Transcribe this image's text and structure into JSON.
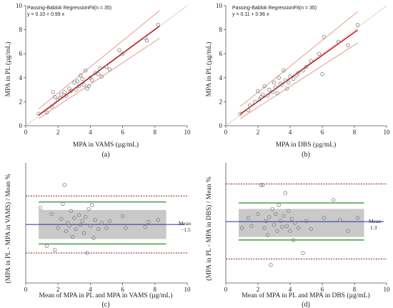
{
  "chart_data": [
    {
      "id": "a",
      "type": "scatter",
      "panel_label": "(a)",
      "header_line1": "Passing-Bablok RegressionFit(n = 35)",
      "header_line2": "y = 0.10  +  0.99  x",
      "xlabel": "MPA in VAMS (µg/mL)",
      "ylabel": "MPA in PL (µg/mL)",
      "xlim": [
        0,
        10
      ],
      "ylim": [
        0,
        10
      ],
      "xticks": [
        0,
        2,
        4,
        6,
        8,
        10
      ],
      "yticks": [
        0,
        2,
        4,
        6,
        8,
        10
      ],
      "tick_labels": [
        "0",
        "2",
        "4",
        "6",
        "8",
        "10"
      ],
      "regression": {
        "intercept": 0.1,
        "slope": 0.99,
        "x_range": [
          0.8,
          8.3
        ]
      },
      "ci_upper": {
        "start": [
          0.8,
          1.4
        ],
        "end": [
          8.3,
          9.6
        ]
      },
      "ci_lower": {
        "start": [
          0.8,
          0.6
        ],
        "end": [
          8.3,
          7.3
        ]
      },
      "points": [
        [
          0.8,
          1.0
        ],
        [
          1.3,
          1.1
        ],
        [
          1.6,
          1.6
        ],
        [
          1.7,
          2.8
        ],
        [
          1.8,
          2.4
        ],
        [
          2.0,
          2.2
        ],
        [
          2.2,
          2.6
        ],
        [
          2.4,
          2.8
        ],
        [
          2.5,
          2.5
        ],
        [
          2.7,
          3.1
        ],
        [
          2.8,
          2.9
        ],
        [
          3.0,
          3.6
        ],
        [
          3.1,
          3.0
        ],
        [
          3.3,
          3.3
        ],
        [
          3.4,
          4.2
        ],
        [
          3.5,
          3.9
        ],
        [
          3.6,
          3.4
        ],
        [
          3.7,
          4.6
        ],
        [
          3.8,
          3.1
        ],
        [
          3.9,
          3.3
        ],
        [
          4.0,
          4.0
        ],
        [
          4.1,
          3.8
        ],
        [
          4.3,
          4.4
        ],
        [
          4.5,
          4.3
        ],
        [
          4.7,
          4.1
        ],
        [
          5.0,
          4.9
        ],
        [
          5.2,
          4.7
        ],
        [
          5.8,
          6.3
        ],
        [
          6.0,
          6.0
        ],
        [
          7.4,
          7.3
        ],
        [
          7.5,
          7.1
        ],
        [
          8.2,
          8.4
        ],
        [
          3.2,
          3.7
        ],
        [
          2.1,
          2.3
        ],
        [
          4.6,
          4.8
        ]
      ]
    },
    {
      "id": "b",
      "type": "scatter",
      "panel_label": "(b)",
      "header_line1": "Passing-Bablok RegressionFit(n = 35)",
      "header_line2": "y = 0.11  +  0.96  x",
      "xlabel": "MPA in DBS (µg/mL)",
      "ylabel": "MPA in PL (µg/mL)",
      "xlim": [
        0,
        10
      ],
      "ylim": [
        0,
        10
      ],
      "xticks": [
        0,
        2,
        4,
        6,
        8,
        10
      ],
      "yticks": [
        0,
        2,
        4,
        6,
        8,
        10
      ],
      "tick_labels": [
        "0",
        "2",
        "4",
        "6",
        "8",
        "10"
      ],
      "regression": {
        "intercept": 0.11,
        "slope": 0.96,
        "x_range": [
          0.9,
          8.2
        ]
      },
      "ci_upper": {
        "start": [
          0.9,
          1.6
        ],
        "end": [
          8.2,
          9.5
        ]
      },
      "ci_lower": {
        "start": [
          0.9,
          0.6
        ],
        "end": [
          8.2,
          6.9
        ]
      },
      "points": [
        [
          0.9,
          1.0
        ],
        [
          1.4,
          1.3
        ],
        [
          1.5,
          1.7
        ],
        [
          1.8,
          2.0
        ],
        [
          2.0,
          2.9
        ],
        [
          2.1,
          2.2
        ],
        [
          2.3,
          2.6
        ],
        [
          2.4,
          3.3
        ],
        [
          2.6,
          2.5
        ],
        [
          2.7,
          3.0
        ],
        [
          2.9,
          2.8
        ],
        [
          3.0,
          3.6
        ],
        [
          3.1,
          3.2
        ],
        [
          3.2,
          2.7
        ],
        [
          3.3,
          4.0
        ],
        [
          3.5,
          3.4
        ],
        [
          3.6,
          4.6
        ],
        [
          3.7,
          3.8
        ],
        [
          3.8,
          3.1
        ],
        [
          3.9,
          3.6
        ],
        [
          4.0,
          4.1
        ],
        [
          4.2,
          3.9
        ],
        [
          4.5,
          4.4
        ],
        [
          4.8,
          4.6
        ],
        [
          5.0,
          4.9
        ],
        [
          5.3,
          5.4
        ],
        [
          5.8,
          6.0
        ],
        [
          6.0,
          4.3
        ],
        [
          6.1,
          7.4
        ],
        [
          7.0,
          7.0
        ],
        [
          7.6,
          6.7
        ],
        [
          8.2,
          8.4
        ],
        [
          2.2,
          2.4
        ],
        [
          3.4,
          3.5
        ],
        [
          4.4,
          4.2
        ]
      ]
    },
    {
      "id": "c",
      "type": "scatter",
      "panel_label": "(c)",
      "xlabel": "Mean of MPA in PL and MPA in VAMS (µg/mL)",
      "ylabel": "(MPA in PL - MPA in VAMS) / Mean %",
      "xlim": [
        0,
        10
      ],
      "ylim": [
        -60,
        60
      ],
      "xticks": [
        0,
        2,
        4,
        6,
        8,
        10
      ],
      "tick_labels": [
        "0",
        "2",
        "4",
        "6",
        "8",
        "10"
      ],
      "mean_label": "Mean",
      "mean_value_label": "−1.5",
      "mean": -1.5,
      "loa": [
        -21,
        21
      ],
      "ci_outer": [
        -30,
        27
      ],
      "band": {
        "x": [
          0.8,
          8.7
        ],
        "y": [
          -16,
          13
        ]
      },
      "points": [
        [
          0.9,
          15
        ],
        [
          1.3,
          -23
        ],
        [
          1.6,
          9
        ],
        [
          1.8,
          -27
        ],
        [
          2.0,
          -5
        ],
        [
          2.2,
          4
        ],
        [
          2.4,
          38
        ],
        [
          2.5,
          -8
        ],
        [
          2.6,
          0
        ],
        [
          2.7,
          -3
        ],
        [
          2.8,
          12
        ],
        [
          2.9,
          -14
        ],
        [
          3.0,
          5
        ],
        [
          3.1,
          -6
        ],
        [
          3.3,
          8
        ],
        [
          3.4,
          -2
        ],
        [
          3.5,
          2
        ],
        [
          3.6,
          -10
        ],
        [
          3.7,
          6
        ],
        [
          3.8,
          -30
        ],
        [
          3.9,
          14
        ],
        [
          4.0,
          -3
        ],
        [
          4.1,
          18
        ],
        [
          4.2,
          -15
        ],
        [
          4.3,
          3
        ],
        [
          4.5,
          -6
        ],
        [
          4.7,
          0
        ],
        [
          5.0,
          -5
        ],
        [
          5.2,
          2
        ],
        [
          6.0,
          7
        ],
        [
          6.2,
          -5
        ],
        [
          7.4,
          -4
        ],
        [
          7.6,
          1
        ],
        [
          8.2,
          3
        ],
        [
          2.3,
          19
        ]
      ]
    },
    {
      "id": "d",
      "type": "scatter",
      "panel_label": "(d)",
      "xlabel": "Mean of MPA in PL and MPA in DBS (µg/mL)",
      "ylabel": "(MPA in PL - MPA in DBS) / Mean %",
      "xlim": [
        0,
        10
      ],
      "ylim": [
        -60,
        60
      ],
      "xticks": [
        0,
        2,
        4,
        6,
        8,
        10
      ],
      "tick_labels": [
        "0",
        "2",
        "4",
        "6",
        "8",
        "10"
      ],
      "mean_label": "Mean",
      "mean_value_label": "1.3",
      "mean": 1.3,
      "loa": [
        -17,
        20
      ],
      "ci_outer": [
        -36,
        39
      ],
      "band": {
        "x": [
          0.8,
          8.6
        ],
        "y": [
          -14,
          14
        ]
      },
      "points": [
        [
          1.0,
          -5
        ],
        [
          1.4,
          5
        ],
        [
          1.6,
          -3
        ],
        [
          2.0,
          9
        ],
        [
          2.2,
          38
        ],
        [
          2.4,
          -5
        ],
        [
          2.5,
          2
        ],
        [
          2.6,
          -12
        ],
        [
          2.7,
          6
        ],
        [
          2.8,
          -42
        ],
        [
          2.9,
          14
        ],
        [
          3.0,
          -2
        ],
        [
          3.1,
          9
        ],
        [
          3.2,
          -8
        ],
        [
          3.4,
          2
        ],
        [
          3.5,
          -4
        ],
        [
          3.6,
          7
        ],
        [
          3.7,
          30
        ],
        [
          3.8,
          -3
        ],
        [
          3.9,
          12
        ],
        [
          4.0,
          -8
        ],
        [
          4.1,
          4
        ],
        [
          4.3,
          0
        ],
        [
          4.5,
          -5
        ],
        [
          4.8,
          -30
        ],
        [
          5.0,
          2
        ],
        [
          5.3,
          -6
        ],
        [
          6.1,
          5
        ],
        [
          6.7,
          23
        ],
        [
          7.1,
          3
        ],
        [
          7.6,
          -8
        ],
        [
          8.2,
          5
        ],
        [
          2.3,
          38
        ],
        [
          3.3,
          18
        ],
        [
          4.2,
          -17
        ]
      ]
    }
  ]
}
